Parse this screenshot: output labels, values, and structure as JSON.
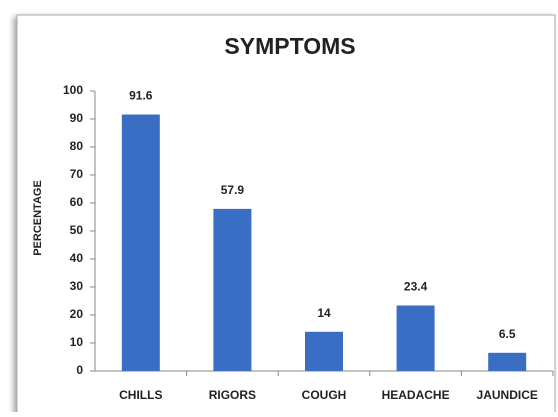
{
  "chart_data": {
    "type": "bar",
    "title": "SYMPTOMS",
    "y_label": "PERCENTAGE",
    "categories": [
      "CHILLS",
      "RIGORS",
      "COUGH",
      "HEADACHE",
      "JAUNDICE"
    ],
    "values": [
      91.6,
      57.9,
      14,
      23.4,
      6.5
    ],
    "color": "#3a6ec4",
    "ylim": [
      0,
      100
    ],
    "yticks": [
      0,
      10,
      20,
      30,
      40,
      50,
      60,
      70,
      80,
      90,
      100
    ],
    "grid": false
  }
}
